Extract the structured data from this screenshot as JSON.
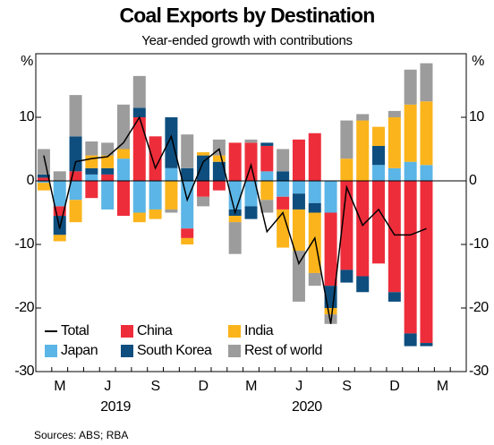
{
  "chart_data": {
    "type": "bar",
    "title": "Coal Exports by Destination",
    "subtitle": "Year-ended growth with contributions",
    "y_unit": "%",
    "source": "Sources: ABS; RBA",
    "years": [
      "2019",
      "2020"
    ],
    "categories": [
      null,
      "M",
      null,
      null,
      "J",
      null,
      null,
      "S",
      null,
      null,
      "D",
      null,
      null,
      "M",
      null,
      null,
      "J",
      null,
      null,
      "S",
      null,
      null,
      "D",
      null,
      null,
      "M",
      null
    ],
    "ylim": [
      -30,
      20
    ],
    "yticks": [
      -30,
      -20,
      -10,
      0,
      10
    ],
    "stacked": true,
    "series": [
      {
        "name": "Total",
        "kind": "line",
        "color": "#000000",
        "values": [
          4,
          -7.5,
          3,
          3.5,
          3.8,
          6,
          10,
          2,
          7,
          -3,
          3,
          5,
          -5,
          2.5,
          -8,
          -5,
          -13,
          -9,
          -22.5,
          -1,
          -7,
          -4.5,
          -8.5,
          -8.5,
          -7.5,
          null,
          null
        ]
      },
      {
        "name": "China",
        "kind": "bar",
        "color": "#ee2d3b",
        "values": [
          0.5,
          -1.5,
          1.5,
          -2.7,
          1,
          -5.5,
          10,
          7,
          0,
          -1.5,
          -2.5,
          -1.5,
          6,
          6,
          4,
          -2,
          6.5,
          7.5,
          -11.5,
          -14,
          -15,
          -13,
          -17.5,
          -24,
          -25.5,
          null,
          null
        ]
      },
      {
        "name": "India",
        "kind": "bar",
        "color": "#fbb41b",
        "values": [
          -1.2,
          -1,
          -3.5,
          2,
          2,
          1.5,
          -1.5,
          -1.5,
          -4.5,
          -1,
          0.5,
          1,
          -1,
          0,
          -3,
          -6,
          -6.5,
          -9.5,
          -1,
          3.5,
          9.5,
          3,
          8,
          9,
          10,
          null,
          null
        ]
      },
      {
        "name": "Japan",
        "kind": "bar",
        "color": "#5bb5e6",
        "values": [
          -0.3,
          -4,
          -3,
          1,
          -4.5,
          3.5,
          -5,
          -4.5,
          2,
          -7.5,
          0,
          0,
          -4.5,
          -4,
          1.5,
          -2.5,
          -2,
          -3.5,
          -5,
          0,
          0,
          2.5,
          2,
          3,
          2.5,
          null,
          null
        ]
      },
      {
        "name": "South Korea",
        "kind": "bar",
        "color": "#0d4e7e",
        "values": [
          0.5,
          -3,
          5.5,
          1,
          1,
          0,
          1.5,
          0,
          8,
          2,
          4,
          3,
          -1,
          -2,
          0.5,
          1.5,
          -2.5,
          -1.5,
          -3.5,
          -2,
          -2.5,
          3,
          -1.5,
          -2,
          -0.5,
          null,
          null
        ]
      },
      {
        "name": "Rest of world",
        "kind": "bar",
        "color": "#9c9c9c",
        "values": [
          4,
          1.5,
          6.5,
          2.2,
          2,
          7,
          5,
          0,
          -0.5,
          5.3,
          -1.5,
          2.5,
          -5,
          0.5,
          -2,
          3.5,
          -8,
          -2,
          -1.5,
          6,
          1,
          0,
          1,
          5.5,
          6,
          null,
          null
        ]
      }
    ]
  }
}
